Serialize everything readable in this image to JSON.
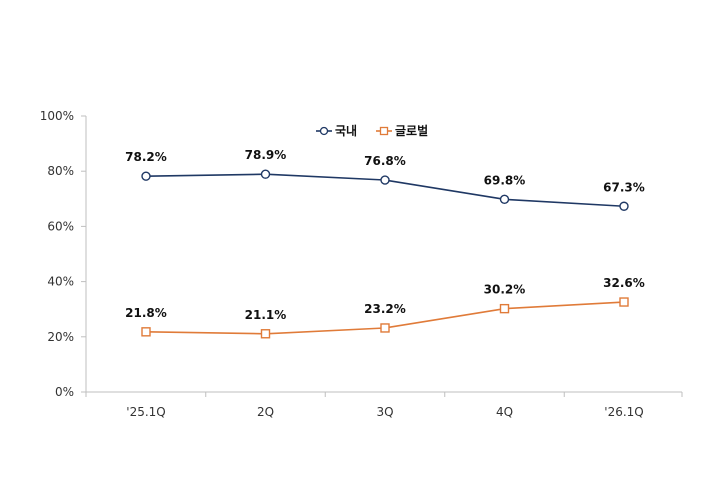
{
  "chart_data": {
    "type": "line",
    "categories": [
      "'25.1Q",
      "2Q",
      "3Q",
      "4Q",
      "'26.1Q"
    ],
    "series": [
      {
        "name": "국내",
        "values": [
          78.2,
          78.9,
          76.8,
          69.8,
          67.3
        ],
        "labels": [
          "78.2%",
          "78.9%",
          "76.8%",
          "69.8%",
          "67.3%"
        ],
        "color": "#1f3864",
        "marker": "circle"
      },
      {
        "name": "글로벌",
        "values": [
          21.8,
          21.1,
          23.2,
          30.2,
          32.6
        ],
        "labels": [
          "21.8%",
          "21.1%",
          "23.2%",
          "30.2%",
          "32.6%"
        ],
        "color": "#e07b39",
        "marker": "square"
      }
    ],
    "yticks": [
      "0%",
      "20%",
      "40%",
      "60%",
      "80%",
      "100%"
    ],
    "ylim": [
      0,
      100
    ],
    "grid": false,
    "legend_position": "top-center",
    "title": "",
    "xlabel": "",
    "ylabel": ""
  }
}
